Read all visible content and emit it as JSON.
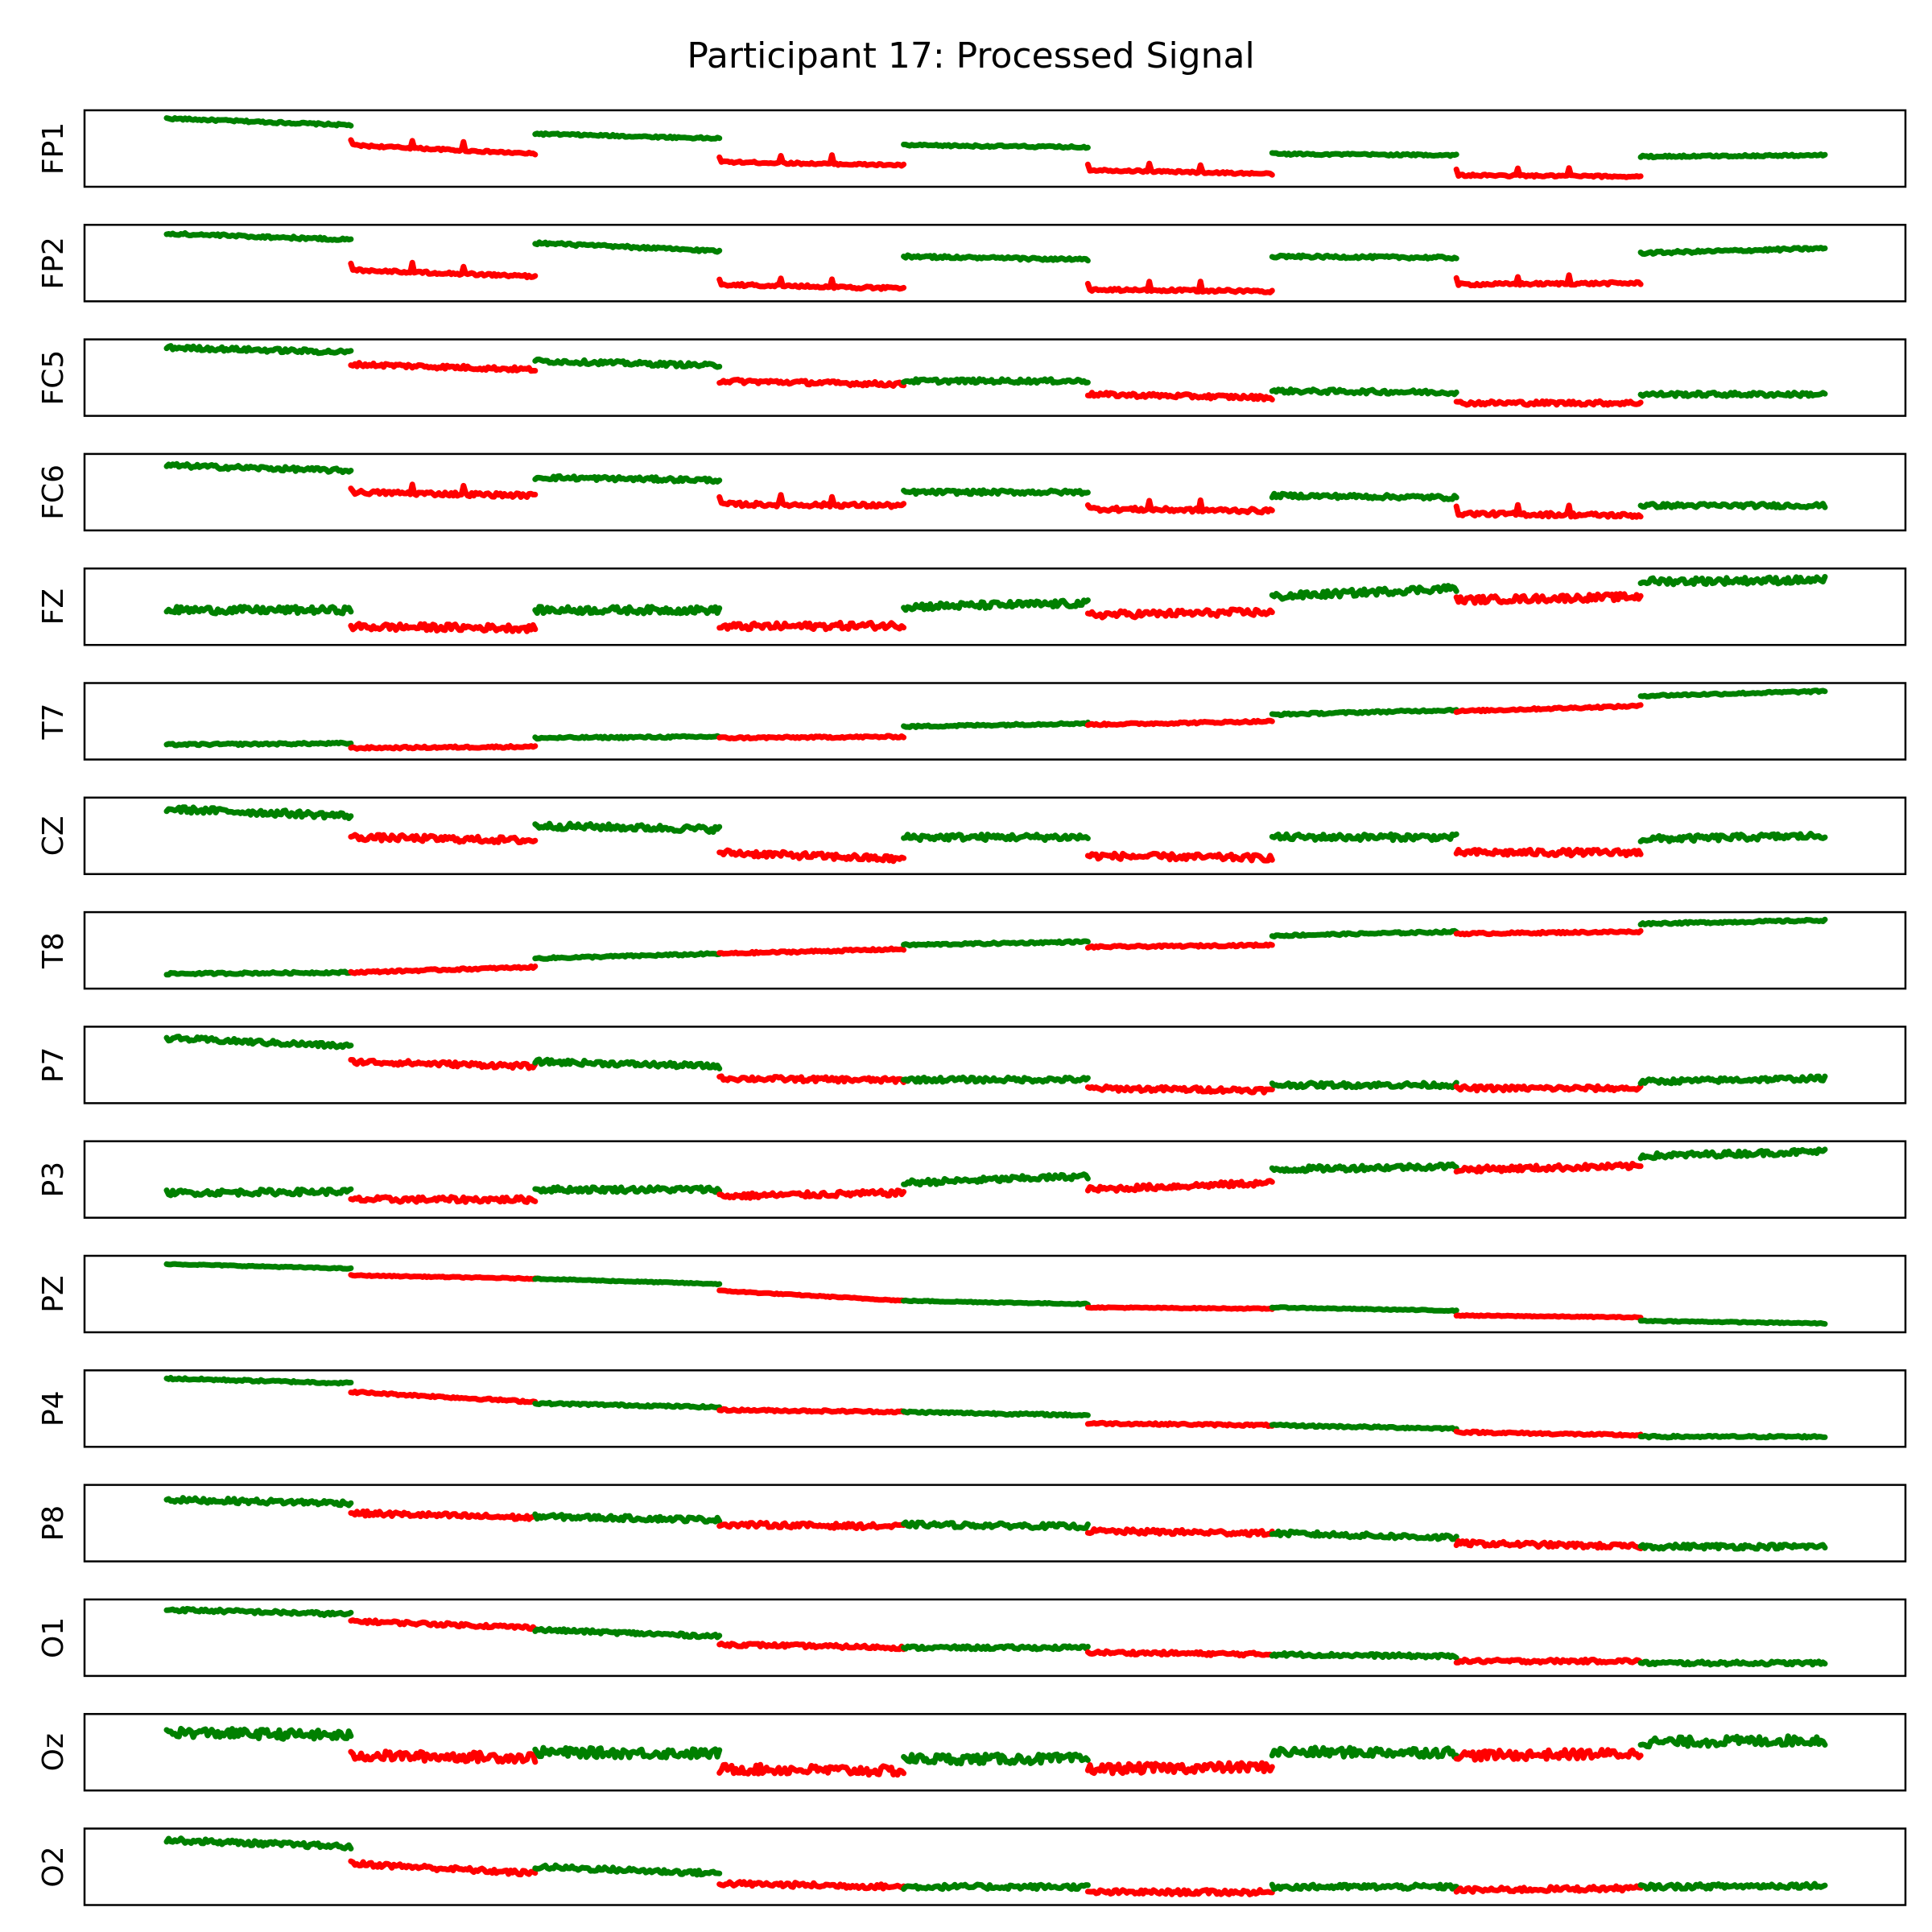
{
  "chart_data": {
    "type": "line",
    "title": "Participant 17: Processed Signal",
    "segment_colors": [
      "#008000",
      "#ff0000",
      "#008000",
      "#ff0000",
      "#008000",
      "#ff0000",
      "#008000",
      "#ff0000",
      "#008000"
    ],
    "segments_per_channel": 9,
    "ylim": [
      0,
      1
    ],
    "channels": [
      {
        "name": "FP1",
        "levels": [
          [
            0.95,
            0.85
          ],
          [
            0.55,
            0.42
          ],
          [
            0.72,
            0.65
          ],
          [
            0.3,
            0.25
          ],
          [
            0.55,
            0.52
          ],
          [
            0.18,
            0.12
          ],
          [
            0.42,
            0.4
          ],
          [
            0.1,
            0.08
          ],
          [
            0.38,
            0.4
          ]
        ],
        "noise": 0.015,
        "spikes": true
      },
      {
        "name": "FP2",
        "levels": [
          [
            0.94,
            0.85
          ],
          [
            0.4,
            0.3
          ],
          [
            0.8,
            0.68
          ],
          [
            0.18,
            0.12
          ],
          [
            0.6,
            0.55
          ],
          [
            0.1,
            0.08
          ],
          [
            0.6,
            0.58
          ],
          [
            0.18,
            0.2
          ],
          [
            0.65,
            0.72
          ]
        ],
        "noise": 0.02,
        "spikes": true
      },
      {
        "name": "FC5",
        "levels": [
          [
            0.95,
            0.88
          ],
          [
            0.7,
            0.62
          ],
          [
            0.75,
            0.68
          ],
          [
            0.45,
            0.4
          ],
          [
            0.45,
            0.45
          ],
          [
            0.25,
            0.2
          ],
          [
            0.3,
            0.28
          ],
          [
            0.12,
            0.12
          ],
          [
            0.25,
            0.25
          ]
        ],
        "noise": 0.03,
        "spikes": false
      },
      {
        "name": "FC6",
        "levels": [
          [
            0.9,
            0.82
          ],
          [
            0.5,
            0.45
          ],
          [
            0.72,
            0.68
          ],
          [
            0.32,
            0.3
          ],
          [
            0.5,
            0.5
          ],
          [
            0.25,
            0.22
          ],
          [
            0.45,
            0.42
          ],
          [
            0.18,
            0.15
          ],
          [
            0.3,
            0.3
          ]
        ],
        "noise": 0.03,
        "spikes": true
      },
      {
        "name": "FZ",
        "levels": [
          [
            0.45,
            0.45
          ],
          [
            0.2,
            0.18
          ],
          [
            0.45,
            0.45
          ],
          [
            0.2,
            0.22
          ],
          [
            0.5,
            0.55
          ],
          [
            0.38,
            0.42
          ],
          [
            0.65,
            0.78
          ],
          [
            0.6,
            0.65
          ],
          [
            0.88,
            0.9
          ]
        ],
        "noise": 0.05,
        "spikes": false
      },
      {
        "name": "T7",
        "levels": [
          [
            0.15,
            0.17
          ],
          [
            0.1,
            0.12
          ],
          [
            0.25,
            0.27
          ],
          [
            0.25,
            0.27
          ],
          [
            0.42,
            0.47
          ],
          [
            0.45,
            0.5
          ],
          [
            0.6,
            0.67
          ],
          [
            0.65,
            0.73
          ],
          [
            0.88,
            0.95
          ]
        ],
        "noise": 0.015,
        "spikes": false
      },
      {
        "name": "CZ",
        "levels": [
          [
            0.9,
            0.8
          ],
          [
            0.48,
            0.43
          ],
          [
            0.65,
            0.6
          ],
          [
            0.25,
            0.15
          ],
          [
            0.48,
            0.48
          ],
          [
            0.2,
            0.17
          ],
          [
            0.48,
            0.48
          ],
          [
            0.25,
            0.25
          ],
          [
            0.45,
            0.5
          ]
        ],
        "noise": 0.045,
        "spikes": false
      },
      {
        "name": "T8",
        "levels": [
          [
            0.15,
            0.17
          ],
          [
            0.17,
            0.25
          ],
          [
            0.38,
            0.45
          ],
          [
            0.45,
            0.52
          ],
          [
            0.58,
            0.63
          ],
          [
            0.55,
            0.58
          ],
          [
            0.72,
            0.78
          ],
          [
            0.75,
            0.78
          ],
          [
            0.9,
            0.95
          ]
        ],
        "noise": 0.015,
        "spikes": false
      },
      {
        "name": "P7",
        "levels": [
          [
            0.9,
            0.78
          ],
          [
            0.55,
            0.48
          ],
          [
            0.55,
            0.48
          ],
          [
            0.3,
            0.27
          ],
          [
            0.28,
            0.28
          ],
          [
            0.15,
            0.12
          ],
          [
            0.2,
            0.2
          ],
          [
            0.15,
            0.15
          ],
          [
            0.25,
            0.3
          ]
        ],
        "noise": 0.035,
        "spikes": false
      },
      {
        "name": "P3",
        "levels": [
          [
            0.3,
            0.32
          ],
          [
            0.2,
            0.2
          ],
          [
            0.35,
            0.35
          ],
          [
            0.25,
            0.3
          ],
          [
            0.45,
            0.55
          ],
          [
            0.35,
            0.45
          ],
          [
            0.65,
            0.7
          ],
          [
            0.65,
            0.7
          ],
          [
            0.85,
            0.92
          ]
        ],
        "noise": 0.04,
        "spikes": false
      },
      {
        "name": "PZ",
        "levels": [
          [
            0.95,
            0.88
          ],
          [
            0.78,
            0.73
          ],
          [
            0.73,
            0.65
          ],
          [
            0.55,
            0.4
          ],
          [
            0.4,
            0.35
          ],
          [
            0.3,
            0.28
          ],
          [
            0.3,
            0.25
          ],
          [
            0.18,
            0.15
          ],
          [
            0.1,
            0.06
          ]
        ],
        "noise": 0.008,
        "spikes": false
      },
      {
        "name": "P4",
        "levels": [
          [
            0.95,
            0.88
          ],
          [
            0.75,
            0.6
          ],
          [
            0.58,
            0.52
          ],
          [
            0.48,
            0.45
          ],
          [
            0.45,
            0.4
          ],
          [
            0.28,
            0.25
          ],
          [
            0.25,
            0.2
          ],
          [
            0.15,
            0.1
          ],
          [
            0.08,
            0.08
          ]
        ],
        "noise": 0.015,
        "spikes": false
      },
      {
        "name": "P8",
        "levels": [
          [
            0.85,
            0.8
          ],
          [
            0.65,
            0.58
          ],
          [
            0.6,
            0.55
          ],
          [
            0.48,
            0.45
          ],
          [
            0.48,
            0.45
          ],
          [
            0.38,
            0.35
          ],
          [
            0.35,
            0.28
          ],
          [
            0.2,
            0.15
          ],
          [
            0.15,
            0.15
          ]
        ],
        "noise": 0.035,
        "spikes": false
      },
      {
        "name": "O1",
        "levels": [
          [
            0.92,
            0.85
          ],
          [
            0.75,
            0.65
          ],
          [
            0.62,
            0.52
          ],
          [
            0.4,
            0.35
          ],
          [
            0.35,
            0.35
          ],
          [
            0.28,
            0.25
          ],
          [
            0.25,
            0.22
          ],
          [
            0.15,
            0.15
          ],
          [
            0.12,
            0.12
          ]
        ],
        "noise": 0.025,
        "spikes": false
      },
      {
        "name": "Oz",
        "levels": [
          [
            0.8,
            0.75
          ],
          [
            0.45,
            0.42
          ],
          [
            0.5,
            0.48
          ],
          [
            0.25,
            0.22
          ],
          [
            0.4,
            0.4
          ],
          [
            0.25,
            0.28
          ],
          [
            0.5,
            0.5
          ],
          [
            0.45,
            0.48
          ],
          [
            0.65,
            0.68
          ]
        ],
        "noise": 0.07,
        "spikes": false
      },
      {
        "name": "O2",
        "levels": [
          [
            0.9,
            0.8
          ],
          [
            0.55,
            0.4
          ],
          [
            0.5,
            0.4
          ],
          [
            0.25,
            0.2
          ],
          [
            0.2,
            0.2
          ],
          [
            0.12,
            0.12
          ],
          [
            0.2,
            0.2
          ],
          [
            0.15,
            0.18
          ],
          [
            0.2,
            0.22
          ]
        ],
        "noise": 0.035,
        "spikes": false
      }
    ]
  }
}
